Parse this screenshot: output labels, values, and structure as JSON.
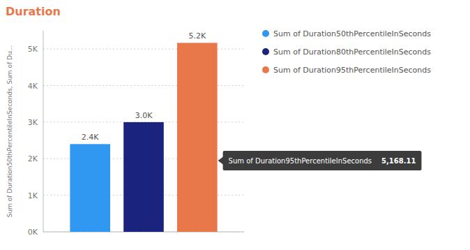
{
  "chart_data": {
    "type": "bar",
    "title": "Duration",
    "categories": [
      null
    ],
    "series": [
      {
        "name": "Sum of Duration50thPercentileInSeconds",
        "color": "#3098F0",
        "values": [
          2400
        ],
        "value_labels": [
          "2.4K"
        ]
      },
      {
        "name": "Sum of Duration80thPercentileInSeconds",
        "color": "#1A237E",
        "values": [
          3000
        ],
        "value_labels": [
          "3.0K"
        ]
      },
      {
        "name": "Sum of Duration95thPercentileInSeconds",
        "color": "#E8784A",
        "values": [
          5168.11
        ],
        "value_labels": [
          "5.2K"
        ]
      }
    ],
    "y_label": "Sum of Duration50thPercentileInSeconds, Sum of Du...",
    "ylim": [
      0,
      5500
    ],
    "yticks": [
      {
        "value": 0,
        "label": "0K"
      },
      {
        "value": 1000,
        "label": "1K"
      },
      {
        "value": 2000,
        "label": "2K"
      },
      {
        "value": 3000,
        "label": "3K"
      },
      {
        "value": 4000,
        "label": "4K"
      },
      {
        "value": 5000,
        "label": "5K"
      }
    ],
    "grid": true,
    "legend": "right",
    "data_labels": true,
    "tick_labels": "y",
    "annotations": [
      "Sum of Duration95thPercentileInSeconds",
      "5,168.11"
    ]
  }
}
